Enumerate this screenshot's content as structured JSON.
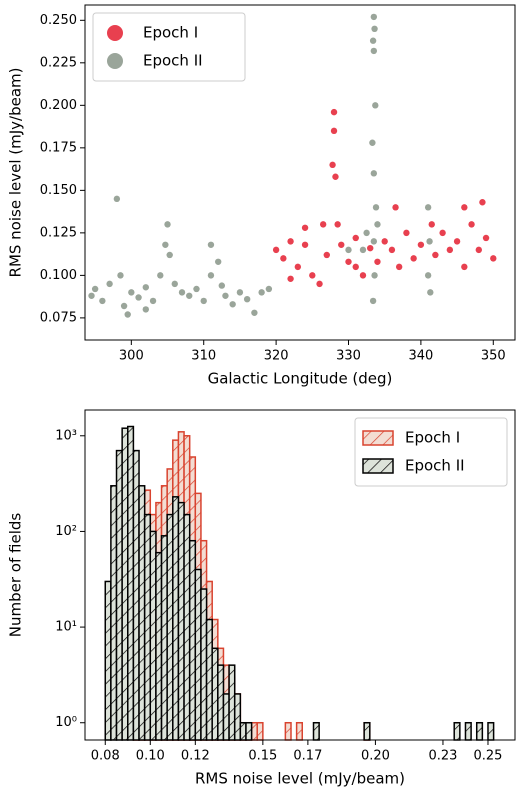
{
  "chart_data": [
    {
      "type": "scatter",
      "xlabel": "Galactic Longitude (deg)",
      "ylabel": "RMS noise level (mJy/beam)",
      "xlim": [
        293.6,
        353
      ],
      "ylim": [
        0.062,
        0.259
      ],
      "xticks": [
        300,
        310,
        320,
        330,
        340,
        350
      ],
      "yticks": [
        0.075,
        {
          "value": 0.1,
          "label": "0.100"
        },
        0.125,
        {
          "value": 0.15,
          "label": "0.150"
        },
        0.175,
        {
          "value": 0.2,
          "label": "0.200"
        },
        0.225,
        {
          "value": 0.25,
          "label": "0.250"
        }
      ],
      "legend": "upper left",
      "series": [
        {
          "name": "Epoch I",
          "color": "#e8404f",
          "x": [
            320,
            321,
            322,
            323,
            324,
            325,
            326,
            326.5,
            327,
            328,
            328,
            327.8,
            328.2,
            328.5,
            329,
            330,
            331,
            332,
            333,
            334,
            335,
            336,
            337,
            338,
            339,
            340,
            342,
            343,
            344,
            345,
            346,
            347,
            348,
            349,
            350,
            348.5,
            346,
            322,
            336.5,
            324,
            331,
            341.5
          ],
          "y": [
            0.115,
            0.11,
            0.12,
            0.105,
            0.118,
            0.1,
            0.095,
            0.13,
            0.112,
            0.196,
            0.185,
            0.165,
            0.158,
            0.13,
            0.118,
            0.108,
            0.122,
            0.1,
            0.116,
            0.108,
            0.12,
            0.115,
            0.105,
            0.125,
            0.11,
            0.118,
            0.112,
            0.125,
            0.115,
            0.12,
            0.105,
            0.13,
            0.115,
            0.122,
            0.11,
            0.143,
            0.14,
            0.098,
            0.14,
            0.128,
            0.105,
            0.13
          ]
        },
        {
          "name": "Epoch II",
          "color": "#9aa59a",
          "x": [
            294.5,
            295,
            296,
            297,
            298,
            298.5,
            299,
            300,
            301,
            302,
            303,
            304,
            304.7,
            305,
            305.3,
            306,
            307,
            308,
            309,
            310,
            311,
            312,
            312.5,
            313,
            314,
            315,
            316,
            317,
            318,
            319,
            299.5,
            311,
            302,
            333.5,
            333.6,
            333.4,
            333.5,
            333.7,
            333.3,
            333.5,
            333.8,
            333.5,
            333.6,
            333.4,
            332,
            332.5,
            334,
            341,
            341.2,
            341,
            341.3,
            330
          ],
          "y": [
            0.088,
            0.092,
            0.085,
            0.095,
            0.145,
            0.1,
            0.082,
            0.09,
            0.087,
            0.093,
            0.085,
            0.1,
            0.118,
            0.13,
            0.112,
            0.095,
            0.09,
            0.088,
            0.092,
            0.085,
            0.1,
            0.108,
            0.094,
            0.088,
            0.083,
            0.09,
            0.086,
            0.078,
            0.09,
            0.092,
            0.077,
            0.118,
            0.08,
            0.252,
            0.245,
            0.238,
            0.232,
            0.2,
            0.178,
            0.16,
            0.14,
            0.12,
            0.1,
            0.085,
            0.115,
            0.125,
            0.13,
            0.14,
            0.12,
            0.1,
            0.09,
            0.115
          ]
        }
      ]
    },
    {
      "type": "histogram",
      "xlabel": "RMS noise level (mJy/beam)",
      "ylabel": "Number of fields",
      "xlim": [
        0.071,
        0.262
      ],
      "ylim": [
        0.66,
        1860
      ],
      "log_y": true,
      "xticks": [
        0.08,
        {
          "value": 0.1,
          "label": "0.10"
        },
        0.12,
        0.15,
        0.17,
        {
          "value": 0.2,
          "label": "0.20"
        },
        0.23,
        0.25
      ],
      "yticks": [
        {
          "value": 1,
          "label": "10⁰"
        },
        {
          "value": 10,
          "label": "10¹"
        },
        {
          "value": 100,
          "label": "10²"
        },
        {
          "value": 1000,
          "label": "10³"
        }
      ],
      "legend": "upper right",
      "bins": [
        0.08,
        0.0825,
        0.085,
        0.0875,
        0.09,
        0.0925,
        0.095,
        0.0975,
        0.1,
        0.1025,
        0.105,
        0.1075,
        0.11,
        0.1125,
        0.115,
        0.1175,
        0.12,
        0.1225,
        0.125,
        0.1275,
        0.13,
        0.1325,
        0.135,
        0.1375,
        0.14,
        0.1425,
        0.145,
        0.1475,
        0.15,
        0.1525,
        0.155,
        0.1575,
        0.16,
        0.1625,
        0.165,
        0.1675,
        0.17,
        0.1725,
        0.175,
        0.1775,
        0.18,
        0.1825,
        0.185,
        0.1875,
        0.19,
        0.1925,
        0.195,
        0.1975,
        0.2,
        0.2025,
        0.205,
        0.2075,
        0.21,
        0.2125,
        0.215,
        0.2175,
        0.22,
        0.2225,
        0.225,
        0.2275,
        0.23,
        0.2325,
        0.235,
        0.2375,
        0.24,
        0.2425,
        0.245,
        0.2475,
        0.25,
        0.2525
      ],
      "series": [
        {
          "name": "Epoch I",
          "color": "#d9432f",
          "fill": "#f3ddd3",
          "values": [
            0,
            0,
            0,
            0,
            0,
            50,
            200,
            270,
            150,
            200,
            300,
            450,
            900,
            1100,
            1000,
            600,
            250,
            80,
            30,
            12,
            6,
            4,
            3,
            2,
            1,
            1,
            1,
            1,
            0,
            0,
            0,
            0,
            1,
            0,
            1,
            0,
            0,
            0,
            0,
            0,
            0,
            0,
            0,
            0,
            0,
            0,
            1,
            0,
            0,
            0,
            0,
            0,
            0,
            0,
            0,
            0,
            0,
            0,
            0,
            0,
            0,
            0,
            0,
            0,
            0,
            0,
            0,
            0,
            0
          ]
        },
        {
          "name": "Epoch II",
          "color": "#000000",
          "fill": "#dde3da",
          "values": [
            30,
            300,
            700,
            1200,
            1250,
            700,
            300,
            150,
            100,
            60,
            90,
            150,
            230,
            200,
            150,
            80,
            40,
            25,
            12,
            6,
            4,
            2,
            4,
            2,
            1,
            1,
            0,
            0,
            0,
            0,
            0,
            0,
            0,
            0,
            0,
            0,
            0,
            1,
            0,
            0,
            0,
            0,
            0,
            0,
            0,
            0,
            1,
            0,
            0,
            0,
            0,
            0,
            0,
            0,
            0,
            0,
            0,
            0,
            0,
            0,
            0,
            0,
            1,
            0,
            1,
            0,
            1,
            0,
            1
          ]
        }
      ]
    }
  ]
}
